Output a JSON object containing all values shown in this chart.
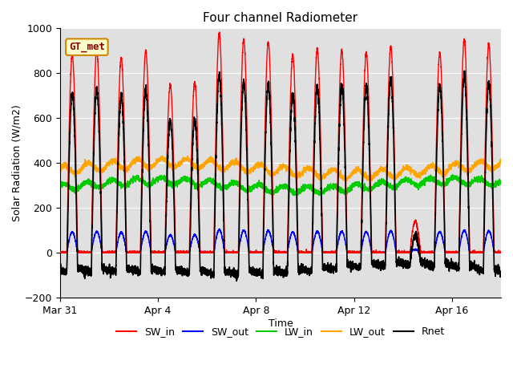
{
  "title": "Four channel Radiometer",
  "xlabel": "Time",
  "ylabel": "Solar Radiation (W/m2)",
  "ylim": [
    -200,
    1000
  ],
  "axes_bg_color": "#e0e0e0",
  "legend_label": "GT_met",
  "x_tick_labels": [
    "Mar 31",
    "Apr 4",
    "Apr 8",
    "Apr 12",
    "Apr 16"
  ],
  "x_tick_positions": [
    0,
    4,
    8,
    12,
    16
  ],
  "series": {
    "SW_in": {
      "color": "#ff0000",
      "lw": 1.0
    },
    "SW_out": {
      "color": "#0000ff",
      "lw": 1.0
    },
    "LW_in": {
      "color": "#00cc00",
      "lw": 1.0
    },
    "LW_out": {
      "color": "#ffa500",
      "lw": 1.0
    },
    "Rnet": {
      "color": "#000000",
      "lw": 1.2
    }
  },
  "num_days": 18,
  "points_per_day": 288,
  "day_peaks_sw_in": [
    880,
    900,
    870,
    900,
    750,
    760,
    980,
    950,
    940,
    880,
    910,
    900,
    890,
    920,
    140,
    890,
    950,
    930
  ]
}
